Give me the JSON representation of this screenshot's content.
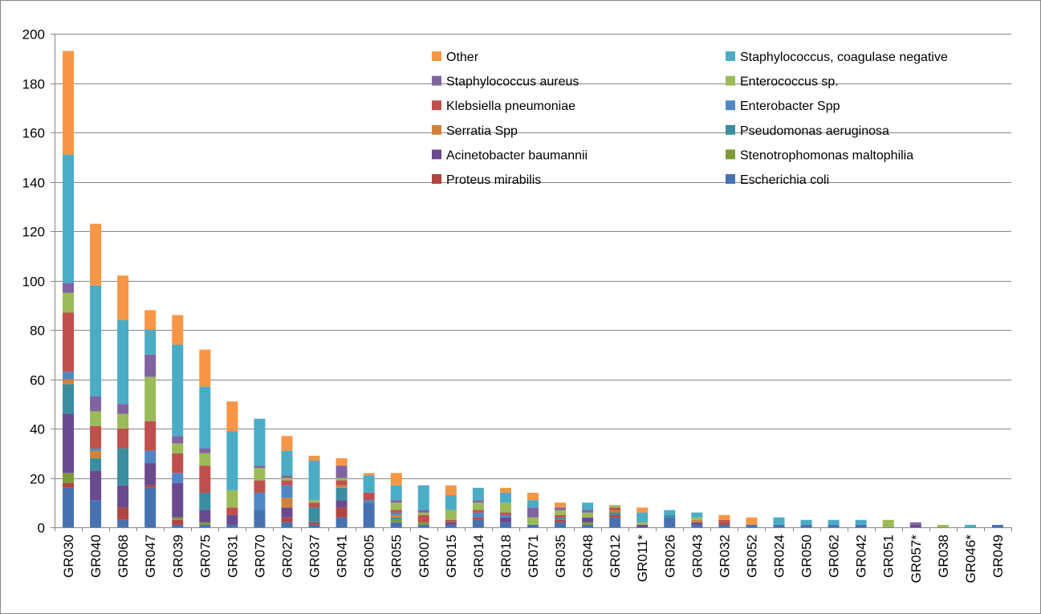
{
  "chart_data": {
    "type": "bar",
    "stacked": true,
    "categories": [
      "GR030",
      "GR040",
      "GR068",
      "GR047",
      "GR039",
      "GR075",
      "GR031",
      "GR070",
      "GR027",
      "GR037",
      "GR041",
      "GR005",
      "GR055",
      "GR007",
      "GR015",
      "GR014",
      "GR018",
      "GR071",
      "GR035",
      "GR048",
      "GR012",
      "GR011*",
      "GR026",
      "GR043",
      "GR032",
      "GR052",
      "GR024",
      "GR050",
      "GR062",
      "GR042",
      "GR051",
      "GR057*",
      "GR038",
      "GR046*",
      "GR049"
    ],
    "ylim": [
      0,
      200
    ],
    "yticks": [
      0,
      20,
      40,
      60,
      80,
      100,
      120,
      140,
      160,
      180,
      200
    ],
    "grid": true,
    "legend_position": "top-right",
    "series": [
      {
        "name": "Escherichia coli",
        "color": "#4672B2",
        "values": [
          16,
          11,
          3,
          16,
          1,
          1,
          1,
          7,
          2,
          1,
          4,
          10,
          2,
          1,
          1,
          3,
          2,
          1,
          2,
          1,
          4,
          0,
          4,
          1,
          1,
          1,
          1,
          1,
          1,
          1,
          0,
          0,
          0,
          0,
          1
        ]
      },
      {
        "name": "Proteus mirabilis",
        "color": "#B24541",
        "values": [
          2,
          0,
          5,
          1,
          2,
          0,
          0,
          0,
          2,
          1,
          4,
          0,
          0,
          0,
          0,
          1,
          0,
          0,
          1,
          0,
          1,
          0,
          0,
          0,
          1,
          0,
          0,
          0,
          0,
          0,
          0,
          0,
          0,
          0,
          0
        ]
      },
      {
        "name": "Stenotrophomonas maltophilia",
        "color": "#7D9A3B",
        "values": [
          4,
          0,
          0,
          0,
          1,
          1,
          0,
          0,
          0,
          0,
          0,
          0,
          1,
          1,
          0,
          0,
          0,
          0,
          0,
          1,
          0,
          0,
          0,
          0,
          0,
          0,
          0,
          0,
          0,
          0,
          0,
          0,
          0,
          0,
          0
        ]
      },
      {
        "name": "Acinetobacter baumannii",
        "color": "#6A4A8E",
        "values": [
          24,
          12,
          9,
          9,
          14,
          5,
          4,
          0,
          4,
          0,
          3,
          0,
          0,
          0,
          1,
          0,
          2,
          0,
          0,
          2,
          0,
          1,
          0,
          1,
          0,
          0,
          0,
          0,
          0,
          0,
          0,
          1,
          0,
          0,
          0
        ]
      },
      {
        "name": "Pseudomonas aeruginosa",
        "color": "#3A8EA0",
        "values": [
          12,
          5,
          15,
          0,
          0,
          7,
          0,
          0,
          0,
          6,
          5,
          0,
          1,
          0,
          0,
          0,
          0,
          0,
          1,
          0,
          1,
          0,
          1,
          0,
          0,
          0,
          0,
          0,
          0,
          0,
          0,
          0,
          0,
          0,
          0
        ]
      },
      {
        "name": "Serratia Spp",
        "color": "#D0823A",
        "values": [
          2,
          3,
          0,
          0,
          0,
          0,
          0,
          0,
          4,
          0,
          1,
          0,
          1,
          0,
          0,
          0,
          0,
          0,
          0,
          0,
          1,
          0,
          0,
          1,
          0,
          0,
          0,
          0,
          0,
          0,
          0,
          0,
          0,
          0,
          0
        ]
      },
      {
        "name": "Enterobacter Spp",
        "color": "#5087C5",
        "values": [
          3,
          1,
          0,
          5,
          4,
          0,
          0,
          7,
          5,
          0,
          0,
          1,
          1,
          0,
          0,
          2,
          1,
          0,
          0,
          0,
          0,
          0,
          0,
          0,
          0,
          0,
          0,
          0,
          0,
          0,
          0,
          0,
          0,
          0,
          0
        ]
      },
      {
        "name": "Klebsiella pneumoniae",
        "color": "#C0504D",
        "values": [
          24,
          9,
          8,
          12,
          8,
          11,
          3,
          5,
          2,
          2,
          2,
          3,
          1,
          3,
          1,
          1,
          1,
          0,
          1,
          0,
          1,
          0,
          0,
          0,
          1,
          0,
          0,
          0,
          0,
          0,
          0,
          0,
          0,
          0,
          0
        ]
      },
      {
        "name": "Enterococcus sp.",
        "color": "#9BBB59",
        "values": [
          8,
          6,
          6,
          18,
          4,
          5,
          7,
          5,
          1,
          1,
          1,
          0,
          3,
          1,
          4,
          3,
          4,
          3,
          2,
          2,
          1,
          1,
          0,
          1,
          0,
          0,
          0,
          0,
          0,
          0,
          3,
          0,
          1,
          0,
          0
        ]
      },
      {
        "name": "Staphylococcus aureus",
        "color": "#8064A2",
        "values": [
          4,
          6,
          4,
          9,
          3,
          2,
          0,
          1,
          1,
          0,
          5,
          0,
          1,
          1,
          0,
          1,
          0,
          4,
          1,
          1,
          0,
          0,
          0,
          0,
          0,
          0,
          0,
          0,
          0,
          0,
          0,
          1,
          0,
          0,
          0
        ]
      },
      {
        "name": "Staphylococcus, coagulase negative",
        "color": "#4BACC6",
        "values": [
          52,
          45,
          34,
          10,
          37,
          25,
          24,
          19,
          10,
          16,
          0,
          7,
          6,
          10,
          6,
          5,
          4,
          3,
          0,
          3,
          0,
          4,
          2,
          2,
          0,
          0,
          3,
          2,
          2,
          2,
          0,
          0,
          0,
          1,
          0
        ]
      },
      {
        "name": "Other",
        "color": "#F79646",
        "values": [
          42,
          25,
          18,
          8,
          12,
          15,
          12,
          0,
          6,
          2,
          3,
          1,
          5,
          0,
          4,
          0,
          2,
          3,
          2,
          0,
          0,
          2,
          0,
          0,
          2,
          3,
          0,
          0,
          0,
          0,
          0,
          0,
          0,
          0,
          0
        ]
      }
    ],
    "legend_layout": [
      [
        "Other",
        "Staphylococcus, coagulase negative"
      ],
      [
        "Staphylococcus aureus",
        "Enterococcus sp."
      ],
      [
        "Klebsiella pneumoniae",
        "Enterobacter Spp"
      ],
      [
        "Serratia Spp",
        "Pseudomonas aeruginosa"
      ],
      [
        "Acinetobacter baumannii",
        "Stenotrophomonas maltophilia"
      ],
      [
        "Proteus mirabilis",
        "Escherichia coli"
      ]
    ],
    "colors": {
      "gridline": "#878787",
      "axis": "#878787",
      "background": "#ffffff"
    }
  }
}
